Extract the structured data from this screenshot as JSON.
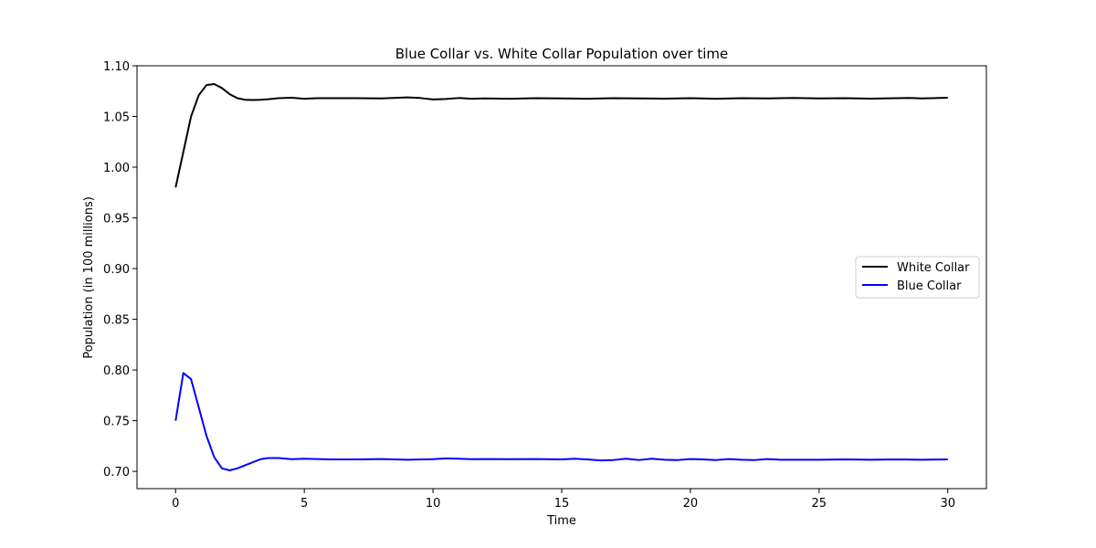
{
  "chart_data": {
    "type": "line",
    "title": "Blue Collar vs. White Collar Population over time",
    "xlabel": "Time",
    "ylabel": "Population (in 100 millions)",
    "xlim": [
      -1.5,
      31.5
    ],
    "ylim": [
      0.683,
      1.1
    ],
    "xticks": [
      0,
      5,
      10,
      15,
      20,
      25,
      30
    ],
    "xtick_labels": [
      "0",
      "5",
      "10",
      "15",
      "20",
      "25",
      "30"
    ],
    "yticks": [
      0.7,
      0.75,
      0.8,
      0.85,
      0.9,
      0.95,
      1.0,
      1.05,
      1.1
    ],
    "ytick_labels": [
      "0.70",
      "0.75",
      "0.80",
      "0.85",
      "0.90",
      "0.95",
      "1.00",
      "1.05",
      "1.10"
    ],
    "grid": false,
    "legend_position": "center-right",
    "series": [
      {
        "name": "White Collar",
        "color": "#000000",
        "x": [
          0,
          0.3,
          0.6,
          0.9,
          1.2,
          1.5,
          1.8,
          2.1,
          2.4,
          2.7,
          3.0,
          3.3,
          3.6,
          4.0,
          4.5,
          5.0,
          5.5,
          6.0,
          7.0,
          8.0,
          9.0,
          9.5,
          10.0,
          10.5,
          11.0,
          11.5,
          12.0,
          13.0,
          14.0,
          15.0,
          16.0,
          17.0,
          18.0,
          19.0,
          20.0,
          21.0,
          22.0,
          23.0,
          24.0,
          25.0,
          26.0,
          27.0,
          28.0,
          28.5,
          29.0,
          30.0
        ],
        "y": [
          0.98,
          1.015,
          1.05,
          1.071,
          1.081,
          1.082,
          1.078,
          1.072,
          1.068,
          1.0665,
          1.0662,
          1.0665,
          1.067,
          1.068,
          1.0685,
          1.0675,
          1.068,
          1.068,
          1.068,
          1.0678,
          1.0688,
          1.0682,
          1.0668,
          1.0672,
          1.0682,
          1.0675,
          1.0678,
          1.0675,
          1.068,
          1.0678,
          1.0675,
          1.068,
          1.0678,
          1.0676,
          1.068,
          1.0675,
          1.068,
          1.0678,
          1.0682,
          1.0678,
          1.068,
          1.0676,
          1.068,
          1.0683,
          1.0678,
          1.0685
        ]
      },
      {
        "name": "Blue Collar",
        "color": "#0000ff",
        "x": [
          0,
          0.3,
          0.6,
          0.9,
          1.2,
          1.5,
          1.8,
          2.1,
          2.4,
          2.7,
          3.0,
          3.3,
          3.6,
          4.0,
          4.5,
          5.0,
          5.5,
          6.0,
          7.0,
          8.0,
          9.0,
          10.0,
          10.5,
          11.0,
          11.5,
          12.0,
          13.0,
          14.0,
          15.0,
          15.5,
          16.0,
          16.5,
          17.0,
          17.5,
          18.0,
          18.5,
          19.0,
          19.5,
          20.0,
          20.5,
          21.0,
          21.5,
          22.0,
          22.5,
          23.0,
          23.5,
          24.0,
          25.0,
          26.0,
          27.0,
          28.0,
          29.0,
          30.0
        ],
        "y": [
          0.75,
          0.797,
          0.791,
          0.763,
          0.735,
          0.714,
          0.703,
          0.701,
          0.703,
          0.706,
          0.709,
          0.712,
          0.7132,
          0.7132,
          0.712,
          0.7125,
          0.7122,
          0.7118,
          0.7118,
          0.7122,
          0.7115,
          0.712,
          0.7128,
          0.7125,
          0.712,
          0.7122,
          0.712,
          0.7122,
          0.7118,
          0.7125,
          0.7118,
          0.7108,
          0.7112,
          0.7125,
          0.7112,
          0.7125,
          0.7115,
          0.7112,
          0.7122,
          0.7118,
          0.7112,
          0.7122,
          0.7115,
          0.7112,
          0.7122,
          0.7115,
          0.7115,
          0.7115,
          0.7118,
          0.7115,
          0.7118,
          0.7115,
          0.7118
        ]
      }
    ]
  }
}
